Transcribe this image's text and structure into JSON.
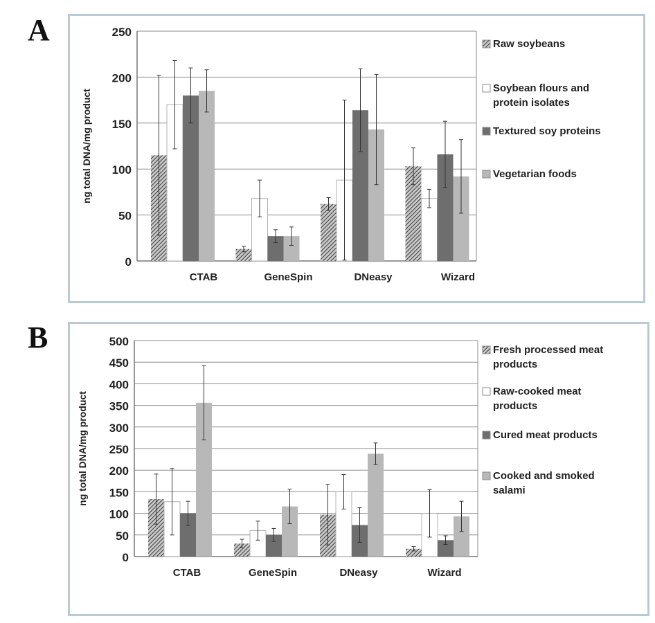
{
  "panels": {
    "a": {
      "letter": "A"
    },
    "b": {
      "letter": "B"
    }
  },
  "chart_data": [
    {
      "type": "bar",
      "title": "",
      "xlabel": "",
      "ylabel": "ng total DNA/mg product",
      "ylim": [
        0,
        250
      ],
      "yticks": [
        0,
        50,
        100,
        150,
        200,
        250
      ],
      "grid": true,
      "legend_position": "right",
      "categories": [
        "CTAB",
        "GeneSpin",
        "DNeasy",
        "Wizard"
      ],
      "series": [
        {
          "name": "Raw soybeans",
          "legend_lines": [
            "Raw soybeans"
          ],
          "pattern": "hatch",
          "color": "#555555",
          "values": [
            115,
            13,
            62,
            103
          ],
          "errors": [
            87,
            3,
            7,
            20
          ]
        },
        {
          "name": "Soybean flours and protein isolates",
          "legend_lines": [
            "Soybean flours and",
            "protein isolates"
          ],
          "pattern": "white",
          "color": "#ffffff",
          "values": [
            170,
            68,
            88,
            68
          ],
          "errors": [
            48,
            20,
            87,
            10
          ]
        },
        {
          "name": "Textured soy proteins",
          "legend_lines": [
            "Textured soy proteins"
          ],
          "pattern": "solid",
          "color": "#6e6e6e",
          "values": [
            180,
            27,
            164,
            116
          ],
          "errors": [
            30,
            7,
            45,
            36
          ]
        },
        {
          "name": "Vegetarian foods",
          "legend_lines": [
            "Vegetarian foods"
          ],
          "pattern": "solid",
          "color": "#b8b8b8",
          "values": [
            185,
            27,
            143,
            92
          ],
          "errors": [
            23,
            10,
            60,
            40
          ]
        }
      ]
    },
    {
      "type": "bar",
      "title": "",
      "xlabel": "",
      "ylabel": "ng total DNA/mg product",
      "ylim": [
        0,
        500
      ],
      "yticks": [
        0,
        50,
        100,
        150,
        200,
        250,
        300,
        350,
        400,
        450,
        500
      ],
      "grid": true,
      "legend_position": "right",
      "categories": [
        "CTAB",
        "GeneSpin",
        "DNeasy",
        "Wizard"
      ],
      "series": [
        {
          "name": "Fresh processed meat products",
          "legend_lines": [
            "Fresh processed meat",
            "products"
          ],
          "pattern": "hatch",
          "color": "#555555",
          "values": [
            133,
            30,
            97,
            18
          ],
          "errors": [
            58,
            10,
            70,
            5
          ]
        },
        {
          "name": "Raw-cooked meat products",
          "legend_lines": [
            "Raw-cooked meat",
            "products"
          ],
          "pattern": "white",
          "color": "#ffffff",
          "values": [
            127,
            60,
            150,
            100
          ],
          "errors": [
            77,
            22,
            40,
            55
          ]
        },
        {
          "name": "Cured meat products",
          "legend_lines": [
            "Cured meat products"
          ],
          "pattern": "solid",
          "color": "#6e6e6e",
          "values": [
            100,
            50,
            73,
            38
          ],
          "errors": [
            28,
            15,
            40,
            10
          ]
        },
        {
          "name": "Cooked and smoked salami",
          "legend_lines": [
            "Cooked and smoked",
            "salami"
          ],
          "pattern": "solid",
          "color": "#b8b8b8",
          "values": [
            356,
            116,
            238,
            93
          ],
          "errors": [
            86,
            40,
            25,
            35
          ]
        }
      ]
    }
  ]
}
